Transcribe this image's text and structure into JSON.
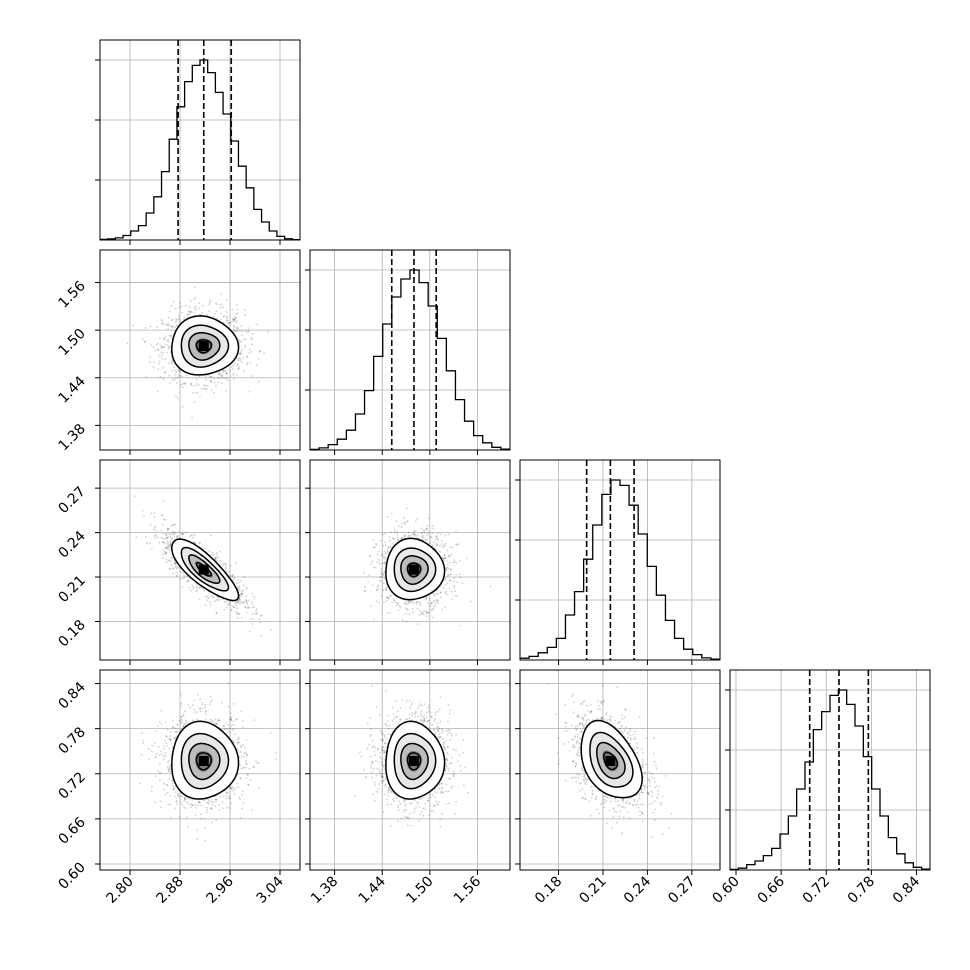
{
  "chart_data": {
    "type": "corner",
    "grid": true,
    "parameters": [
      {
        "range": [
          2.752,
          3.072
        ],
        "ticks": [
          2.8,
          2.88,
          2.96,
          3.04
        ],
        "tick_labels": [
          "2.80",
          "2.88",
          "2.96",
          "3.04"
        ],
        "quantiles": [
          2.877,
          2.918,
          2.962
        ],
        "hist": [
          0.003,
          0.006,
          0.012,
          0.025,
          0.05,
          0.08,
          0.15,
          0.24,
          0.38,
          0.56,
          0.74,
          0.88,
          0.97,
          1.0,
          0.93,
          0.82,
          0.7,
          0.55,
          0.41,
          0.29,
          0.17,
          0.1,
          0.05,
          0.02,
          0.007,
          0.002
        ]
      },
      {
        "range": [
          1.349,
          1.601
        ],
        "ticks": [
          1.38,
          1.44,
          1.5,
          1.56
        ],
        "tick_labels": [
          "1.38",
          "1.44",
          "1.50",
          "1.56"
        ],
        "quantiles": [
          1.452,
          1.48,
          1.508
        ],
        "hist": [
          0.003,
          0.012,
          0.03,
          0.06,
          0.11,
          0.2,
          0.33,
          0.52,
          0.7,
          0.85,
          0.95,
          1.0,
          0.93,
          0.8,
          0.62,
          0.44,
          0.28,
          0.16,
          0.08,
          0.04,
          0.015,
          0.005
        ]
      },
      {
        "range": [
          0.154,
          0.289
        ],
        "ticks": [
          0.18,
          0.21,
          0.24,
          0.27
        ],
        "tick_labels": [
          "0.18",
          "0.21",
          "0.24",
          "0.27"
        ],
        "quantiles": [
          0.199,
          0.215,
          0.231
        ],
        "hist": [
          0.01,
          0.02,
          0.04,
          0.07,
          0.12,
          0.25,
          0.38,
          0.56,
          0.75,
          0.92,
          1.0,
          0.97,
          0.86,
          0.7,
          0.52,
          0.36,
          0.22,
          0.12,
          0.06,
          0.03,
          0.012,
          0.005
        ]
      },
      {
        "range": [
          0.592,
          0.858
        ],
        "ticks": [
          0.6,
          0.66,
          0.72,
          0.78,
          0.84
        ],
        "tick_labels": [
          "0.60",
          "0.66",
          "0.72",
          "0.78",
          "0.84"
        ],
        "quantiles": [
          0.698,
          0.737,
          0.776
        ],
        "hist": [
          0.003,
          0.01,
          0.03,
          0.05,
          0.08,
          0.12,
          0.2,
          0.3,
          0.45,
          0.6,
          0.78,
          0.88,
          0.97,
          1.0,
          0.92,
          0.8,
          0.63,
          0.45,
          0.3,
          0.18,
          0.09,
          0.04,
          0.015,
          0.005
        ]
      }
    ],
    "density": {
      "0-1": {
        "mean": [
          2.918,
          1.48
        ],
        "sd": [
          0.026,
          0.018
        ],
        "rho": 0.0
      },
      "0-2": {
        "mean": [
          2.918,
          0.215
        ],
        "sd": [
          0.026,
          0.01
        ],
        "rho": -0.8
      },
      "0-3": {
        "mean": [
          2.918,
          0.737
        ],
        "sd": [
          0.026,
          0.025
        ],
        "rho": 0.0
      },
      "1-2": {
        "mean": [
          1.48,
          0.215
        ],
        "sd": [
          0.018,
          0.01
        ],
        "rho": 0.0
      },
      "1-3": {
        "mean": [
          1.48,
          0.737
        ],
        "sd": [
          0.018,
          0.025
        ],
        "rho": 0.0
      },
      "2-3": {
        "mean": [
          0.215,
          0.737
        ],
        "sd": [
          0.01,
          0.025
        ],
        "rho": -0.4
      }
    }
  }
}
